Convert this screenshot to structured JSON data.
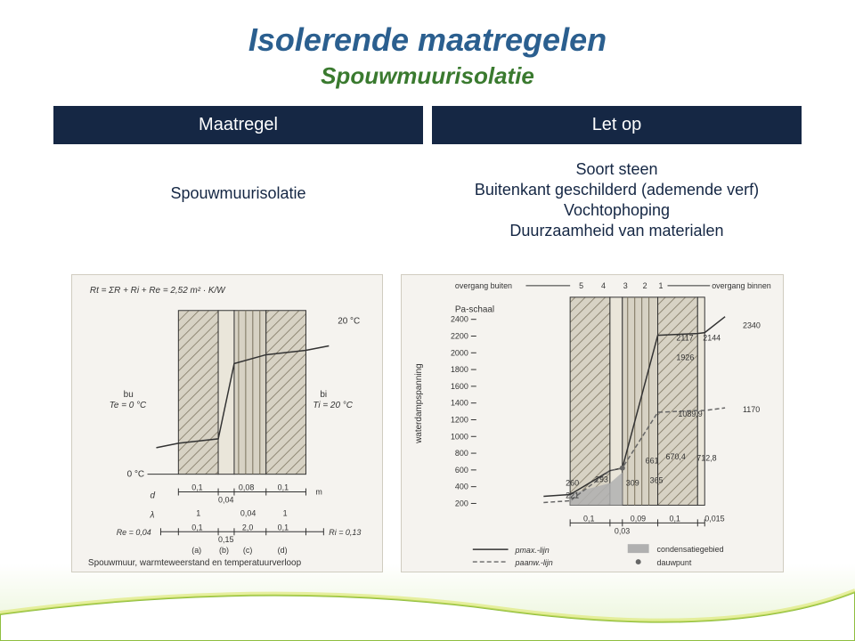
{
  "title": "Isolerende maatregelen",
  "subtitle": "Spouwmuurisolatie",
  "table": {
    "head_left": "Maatregel",
    "head_right": "Let op",
    "body_left": "Spouwmuurisolatie",
    "body_right_lines": [
      "Soort steen",
      "Buitenkant geschilderd (ademende verf)",
      "Vochtophoping",
      "Duurzaamheid van materialen"
    ]
  },
  "colors": {
    "bg": "#f5f3ef",
    "wall": "#d7d2c4",
    "hatch": "#79715c",
    "line": "#333333",
    "gray_fill": "#b0b0b0",
    "dash": "#666666",
    "text": "#333333",
    "blue": "#2b5f8f",
    "green": "#3a7a2f"
  },
  "left_diagram": {
    "formula": "Rt = ΣR + Ri + Re =  2,52 m² · K/W",
    "top_temp": "20 °C",
    "bu": "bu",
    "te": "Te = 0 °C",
    "bi": "bi",
    "ti": "Ti = 20 °C",
    "zero": "0 °C",
    "d_label": "d",
    "lambda_label": "λ",
    "d_vals": [
      "0,1",
      "0,08",
      "0,1"
    ],
    "d_mid": "0,04",
    "d_unit": "m",
    "lambda_vals": [
      "1",
      "0,04",
      "1"
    ],
    "r_eq": "Re = 0,04",
    "r_vals": [
      "0,1",
      "2,0",
      "0,1"
    ],
    "r_mid": "0,15",
    "ri": "Ri = 0,13",
    "abcd": [
      "(a)",
      "(b)",
      "(c)",
      "(d)"
    ],
    "caption": "Spouwmuur, warmteweerstand en temperatuurverloop"
  },
  "right_diagram": {
    "overgang_buiten": "overgang buiten",
    "overgang_binnen": "overgang binnen",
    "top_cols": [
      "5",
      "4",
      "3",
      "2",
      "1"
    ],
    "pa_label": "Pa-schaal",
    "y_label": "waterdampspanning",
    "y_ticks": [
      "2400",
      "2200",
      "2000",
      "1800",
      "1600",
      "1400",
      "1200",
      "1000",
      "800",
      "600",
      "400",
      "200"
    ],
    "annot": {
      "v2117": "2117",
      "v2144": "2144",
      "v2340": "2340",
      "v1926": "1926",
      "v1089": "1089,9",
      "v1170": "1170",
      "v661": "661",
      "v670": "670,4",
      "v712": "712,8",
      "v365": "365",
      "v309": "309",
      "v293": "293",
      "v260": "260",
      "v221": "221"
    },
    "x_vals": [
      "0,1",
      "0,09",
      "0,1",
      "0,015"
    ],
    "x_mid": "0,03",
    "legend": {
      "pmax": "pmax.-lijn",
      "paanw": "paanw.-lijn",
      "cond": "condensatiegebied",
      "dauw": "dauwpunt"
    }
  }
}
